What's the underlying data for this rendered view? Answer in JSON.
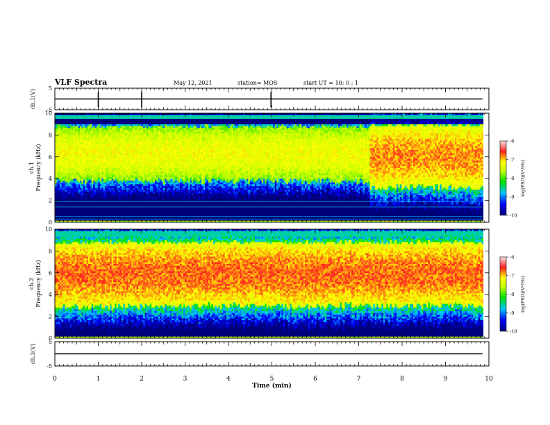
{
  "header": {
    "title": "VLF Spectra",
    "date": "May 12, 2021",
    "station": "station= MOS",
    "start": "start  UT =   10: 0   : 1"
  },
  "chart_data": [
    {
      "type": "line",
      "panel": "ch1-waveform",
      "ylabel": "ch.1(V)",
      "ylim": [
        -5,
        5
      ],
      "yticks": [
        "5",
        "-5"
      ],
      "series": [
        {
          "x": [
            0,
            9.85
          ],
          "y": [
            0,
            0
          ]
        }
      ]
    },
    {
      "type": "heatmap",
      "panel": "ch1-spectrogram",
      "ylabel_lines": [
        "ch.1",
        "Frequency (kHz)"
      ],
      "ylim": [
        0,
        10
      ],
      "yticks": [
        "0",
        "2",
        "4",
        "6",
        "8",
        "10"
      ],
      "xlim": [
        0,
        10
      ],
      "time_end_min": 9.85,
      "colorbar": {
        "min": -10,
        "max": -6,
        "ticks": [
          "-6",
          "-7",
          "-8",
          "-9",
          "-10"
        ],
        "label": "log(PSD)(V²/Hz)"
      },
      "segments": [
        {
          "t_start": 0.0,
          "t_end": 7.25,
          "f_low_kHz": 3.8,
          "f_high_kHz": 8.8,
          "peak_log_psd": -7.0
        },
        {
          "t_start": 7.25,
          "t_end": 9.85,
          "f_low_kHz": 3.2,
          "f_high_kHz": 8.9,
          "peak_log_psd": -6.6
        }
      ],
      "features": {
        "notch_kHz": 9.3,
        "upper_band_kHz": 9.7,
        "low_lines_kHz": [
          0.3,
          0.55,
          1.4,
          1.9
        ]
      }
    },
    {
      "type": "heatmap",
      "panel": "ch2-spectrogram",
      "ylabel_lines": [
        "ch.2",
        "Frequency (kHz)"
      ],
      "ylim": [
        0,
        10
      ],
      "yticks": [
        "0",
        "2",
        "4",
        "6",
        "8",
        "10"
      ],
      "xlim": [
        0,
        10
      ],
      "time_end_min": 9.85,
      "colorbar": {
        "min": -10,
        "max": -6,
        "ticks": [
          "-6",
          "-7",
          "-8",
          "-9",
          "-10"
        ],
        "label": "log(PSD)(V²/Hz)"
      },
      "segments": [
        {
          "t_start": 0.0,
          "t_end": 9.85,
          "f_low_kHz": 3.0,
          "f_high_kHz": 8.8,
          "peak_log_psd": -6.5
        }
      ],
      "features": {
        "upper_band_kHz": 9.6
      }
    },
    {
      "type": "line",
      "panel": "ch3-waveform",
      "ylabel": "ch.3(V)",
      "ylim": [
        -5,
        5
      ],
      "yticks": [
        "5",
        "-5"
      ],
      "series": [
        {
          "x": [
            0,
            9.85
          ],
          "y": [
            0,
            0
          ]
        }
      ]
    }
  ],
  "xaxis": {
    "label": "Time (min)",
    "ticks": [
      "0",
      "1",
      "2",
      "3",
      "4",
      "5",
      "6",
      "7",
      "8",
      "9",
      "10"
    ]
  }
}
